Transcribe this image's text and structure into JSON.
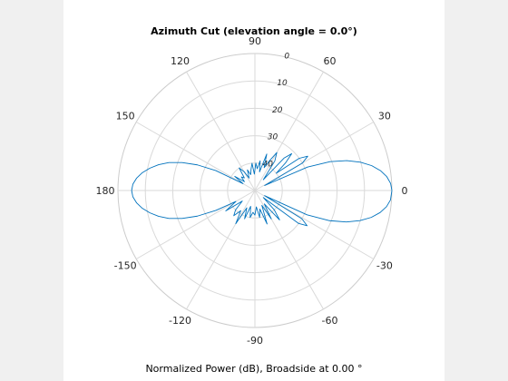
{
  "chart_data": {
    "type": "polar-line",
    "title": "Azimuth Cut (elevation angle = 0.0°)",
    "xlabel": "Normalized Power (dB), Broadside at 0.00 °",
    "angle_ticks": [
      0,
      30,
      60,
      90,
      120,
      150,
      180,
      -150,
      -120,
      -90,
      -60,
      -30
    ],
    "angle_tick_labels": [
      "0",
      "30",
      "60",
      "90",
      "120",
      "150",
      "180",
      "-150",
      "-120",
      "-90",
      "-60",
      "-30"
    ],
    "radial_ticks": [
      0,
      10,
      20,
      30,
      40
    ],
    "radial_tick_labels": [
      "0",
      "10",
      "20",
      "30",
      "40"
    ],
    "radial_range_db": [
      0,
      50
    ],
    "grid": true,
    "line_color": "#0072bd",
    "series": [
      {
        "angle_deg": [
          0,
          3,
          6,
          9,
          12,
          15,
          18,
          21,
          24,
          27,
          30,
          33,
          36,
          39,
          42,
          45,
          48,
          52,
          56,
          60,
          64,
          68,
          72,
          76,
          80,
          84,
          88,
          92,
          96,
          100,
          105,
          110,
          115,
          120,
          125,
          130,
          135,
          140,
          145,
          150,
          153,
          156,
          159,
          162,
          165,
          168,
          171,
          174,
          177,
          180,
          183,
          186,
          189,
          192,
          195,
          198,
          201,
          204,
          207,
          210,
          215,
          220,
          225,
          230,
          235,
          240,
          245,
          250,
          255,
          260,
          265,
          270,
          275,
          280,
          285,
          290,
          295,
          300,
          305,
          310,
          315,
          320,
          323,
          326,
          329,
          332,
          335,
          338,
          341,
          344,
          347,
          350,
          353,
          356,
          360
        ],
        "power_db": [
          0,
          -0.4,
          -1.6,
          -3.6,
          -6.4,
          -10.1,
          -14.7,
          -20.6,
          -29,
          -46,
          -30,
          -27,
          -30,
          -40,
          -35,
          -31,
          -34,
          -45,
          -37,
          -34,
          -38,
          -41,
          -36,
          -43,
          -39,
          -42,
          -40,
          -44,
          -40,
          -42,
          -44,
          -42,
          -45,
          -42,
          -40,
          -44,
          -43,
          -45,
          -41,
          -45,
          -34,
          -27,
          -21.5,
          -17,
          -13.6,
          -10.8,
          -8.4,
          -6.6,
          -5.4,
          -5,
          -5.4,
          -6.6,
          -8.4,
          -10.8,
          -13.6,
          -17,
          -21.5,
          -27,
          -34,
          -42,
          -37,
          -44,
          -40,
          -38,
          -41,
          -36,
          -43,
          -39,
          -44,
          -40,
          -42,
          -41,
          -44,
          -40,
          -43,
          -37,
          -44,
          -38,
          -44,
          -36,
          -40,
          -46,
          -30,
          -27,
          -30,
          -46,
          -29,
          -20.6,
          -14.7,
          -10.1,
          -6.4,
          -3.6,
          -1.6,
          -0.4,
          0
        ]
      }
    ]
  }
}
